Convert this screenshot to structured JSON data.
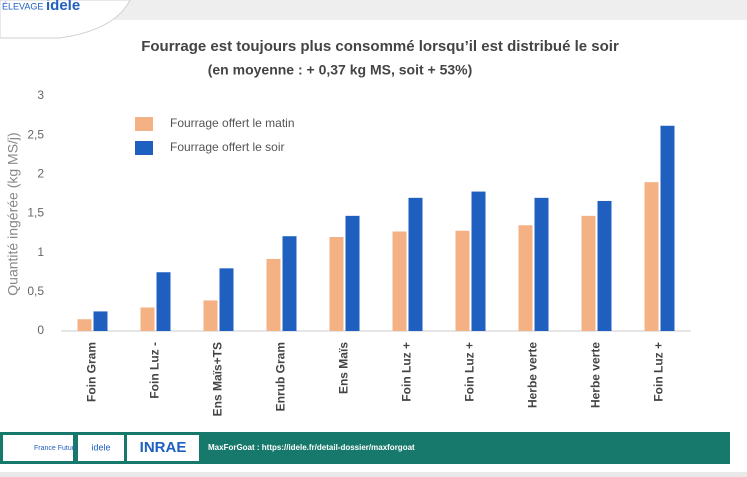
{
  "header": {
    "logo_small": "ÉLEVAGE",
    "logo_brand": "idele"
  },
  "chart_data": {
    "type": "bar",
    "title": "Fourrage est toujours plus consommé lorsqu’il est distribué le soir",
    "subtitle": "(en moyenne : + 0,37 kg MS, soit + 53%)",
    "y_label": "Quantité ingérée (kg MS/j)",
    "categories": [
      "Foin Gram",
      "Foin Luz -",
      "Ens Maïs+TS",
      "Enrub Gram",
      "Ens Maïs",
      "Foin Luz +",
      "Foin Luz +",
      "Herbe verte",
      "Herbe verte",
      "Foin Luz +"
    ],
    "series": [
      {
        "name": "Fourrage offert le matin",
        "color": "#f4b183",
        "values": [
          0.15,
          0.3,
          0.39,
          0.92,
          1.2,
          1.27,
          1.28,
          1.35,
          1.47,
          1.9
        ]
      },
      {
        "name": "Fourrage offert le soir",
        "color": "#1f5fbf",
        "values": [
          0.25,
          0.75,
          0.8,
          1.21,
          1.47,
          1.7,
          1.78,
          1.7,
          1.66,
          2.62
        ]
      }
    ],
    "ylim": [
      0,
      3
    ],
    "yticks": [
      0,
      {
        "value": 0.5,
        "label": "0,5"
      },
      1,
      {
        "value": 1.5,
        "label": "1,5"
      },
      2,
      {
        "value": 2.5,
        "label": "2,5"
      },
      3
    ],
    "grid": false,
    "legend": "top-left"
  },
  "footer": {
    "logo1": "France Futur Elevage",
    "logo2": "idele",
    "logo3": "INRAE",
    "link": "MaxForGoat : https://idele.fr/detail-dossier/maxforgoat"
  }
}
